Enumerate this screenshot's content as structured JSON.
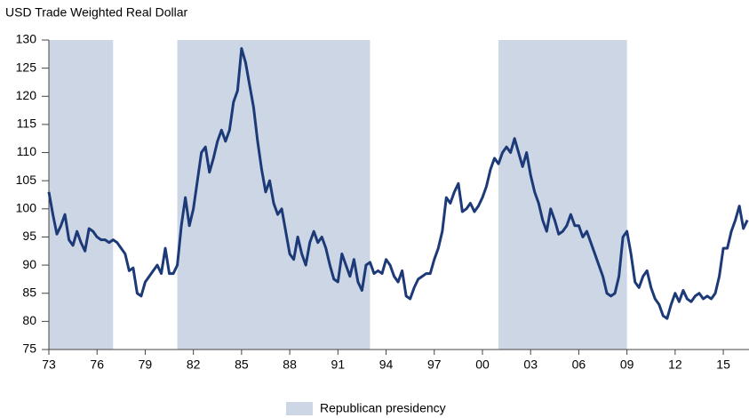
{
  "chart_data": {
    "type": "line",
    "title": "USD Trade Weighted Real Dollar",
    "xlim": [
      1973,
      2016.6
    ],
    "xticks": [
      {
        "value": 1973,
        "label": "73"
      },
      {
        "value": 1976,
        "label": "76"
      },
      {
        "value": 1979,
        "label": "79"
      },
      {
        "value": 1982,
        "label": "82"
      },
      {
        "value": 1985,
        "label": "85"
      },
      {
        "value": 1988,
        "label": "88"
      },
      {
        "value": 1991,
        "label": "91"
      },
      {
        "value": 1994,
        "label": "94"
      },
      {
        "value": 1997,
        "label": "97"
      },
      {
        "value": 2000,
        "label": "00"
      },
      {
        "value": 2003,
        "label": "03"
      },
      {
        "value": 2006,
        "label": "06"
      },
      {
        "value": 2009,
        "label": "09"
      },
      {
        "value": 2012,
        "label": "12"
      },
      {
        "value": 2015,
        "label": "15"
      }
    ],
    "ylim": [
      75,
      130
    ],
    "yticks": [
      75,
      80,
      85,
      90,
      95,
      100,
      105,
      110,
      115,
      120,
      125,
      130
    ],
    "shaded_regions": {
      "name": "Republican presidency",
      "color": "#cdd6e4",
      "spans": [
        {
          "start": 1973,
          "end": 1977
        },
        {
          "start": 1981,
          "end": 1993
        },
        {
          "start": 2001,
          "end": 2009
        }
      ]
    },
    "x": [
      1973,
      1973.25,
      1973.5,
      1973.75,
      1974,
      1974.25,
      1974.5,
      1974.75,
      1975,
      1975.25,
      1975.5,
      1975.75,
      1976,
      1976.25,
      1976.5,
      1976.75,
      1977,
      1977.25,
      1977.5,
      1977.75,
      1978,
      1978.25,
      1978.5,
      1978.75,
      1979,
      1979.25,
      1979.5,
      1979.75,
      1980,
      1980.25,
      1980.5,
      1980.75,
      1981,
      1981.25,
      1981.5,
      1981.75,
      1982,
      1982.25,
      1982.5,
      1982.75,
      1983,
      1983.25,
      1983.5,
      1983.75,
      1984,
      1984.25,
      1984.5,
      1984.75,
      1985,
      1985.25,
      1985.5,
      1985.75,
      1986,
      1986.25,
      1986.5,
      1986.75,
      1987,
      1987.25,
      1987.5,
      1987.75,
      1988,
      1988.25,
      1988.5,
      1988.75,
      1989,
      1989.25,
      1989.5,
      1989.75,
      1990,
      1990.25,
      1990.5,
      1990.75,
      1991,
      1991.25,
      1991.5,
      1991.75,
      1992,
      1992.25,
      1992.5,
      1992.75,
      1993,
      1993.25,
      1993.5,
      1993.75,
      1994,
      1994.25,
      1994.5,
      1994.75,
      1995,
      1995.25,
      1995.5,
      1995.75,
      1996,
      1996.25,
      1996.5,
      1996.75,
      1997,
      1997.25,
      1997.5,
      1997.75,
      1998,
      1998.25,
      1998.5,
      1998.75,
      1999,
      1999.25,
      1999.5,
      1999.75,
      2000,
      2000.25,
      2000.5,
      2000.75,
      2001,
      2001.25,
      2001.5,
      2001.75,
      2002,
      2002.25,
      2002.5,
      2002.75,
      2003,
      2003.25,
      2003.5,
      2003.75,
      2004,
      2004.25,
      2004.5,
      2004.75,
      2005,
      2005.25,
      2005.5,
      2005.75,
      2006,
      2006.25,
      2006.5,
      2006.75,
      2007,
      2007.25,
      2007.5,
      2007.75,
      2008,
      2008.25,
      2008.5,
      2008.75,
      2009,
      2009.25,
      2009.5,
      2009.75,
      2010,
      2010.25,
      2010.5,
      2010.75,
      2011,
      2011.25,
      2011.5,
      2011.75,
      2012,
      2012.25,
      2012.5,
      2012.75,
      2013,
      2013.25,
      2013.5,
      2013.75,
      2014,
      2014.25,
      2014.5,
      2014.75,
      2015,
      2015.25,
      2015.5,
      2015.75,
      2016,
      2016.25,
      2016.5
    ],
    "series": [
      {
        "color": "#1c3a78",
        "values": [
          103,
          99,
          95.5,
          97,
          99,
          94.5,
          93.5,
          96,
          94,
          92.5,
          96.5,
          96,
          95,
          94.5,
          94.5,
          94,
          94.5,
          94,
          93,
          92,
          89,
          89.5,
          85,
          84.5,
          87,
          88,
          89,
          90,
          88.5,
          93,
          88.5,
          88.5,
          90,
          97,
          102,
          97,
          100,
          105,
          110,
          111,
          106.5,
          109,
          112,
          114,
          112,
          114,
          119,
          121,
          128.5,
          126,
          122,
          118,
          112,
          107,
          103,
          105,
          101,
          99,
          100,
          96,
          92,
          91,
          95,
          92,
          90,
          94,
          96,
          94,
          95,
          93,
          90,
          87.5,
          87,
          92,
          90,
          88,
          91,
          87,
          85.5,
          90,
          90.5,
          88.5,
          89,
          88.5,
          91,
          90,
          88,
          87,
          89,
          84.5,
          84,
          86,
          87.5,
          88,
          88.5,
          88.5,
          91,
          93,
          96,
          102,
          101,
          103,
          104.5,
          99.5,
          100,
          101,
          99.5,
          100.5,
          102,
          104,
          107,
          109,
          108,
          110,
          111,
          110,
          112.5,
          110,
          107.5,
          110,
          106,
          103,
          101,
          98,
          96,
          100,
          98,
          95.5,
          96,
          97,
          99,
          97,
          97,
          95,
          96,
          94,
          92,
          90,
          88,
          85,
          84.5,
          85,
          88,
          95,
          96,
          92,
          87,
          86,
          88,
          89,
          86,
          84,
          83,
          81,
          80.5,
          83,
          85,
          83.5,
          85.5,
          84,
          83.5,
          84.5,
          85,
          84,
          84.5,
          84,
          85,
          88,
          93,
          93,
          96,
          98,
          100.5,
          96.5,
          98
        ]
      }
    ]
  }
}
